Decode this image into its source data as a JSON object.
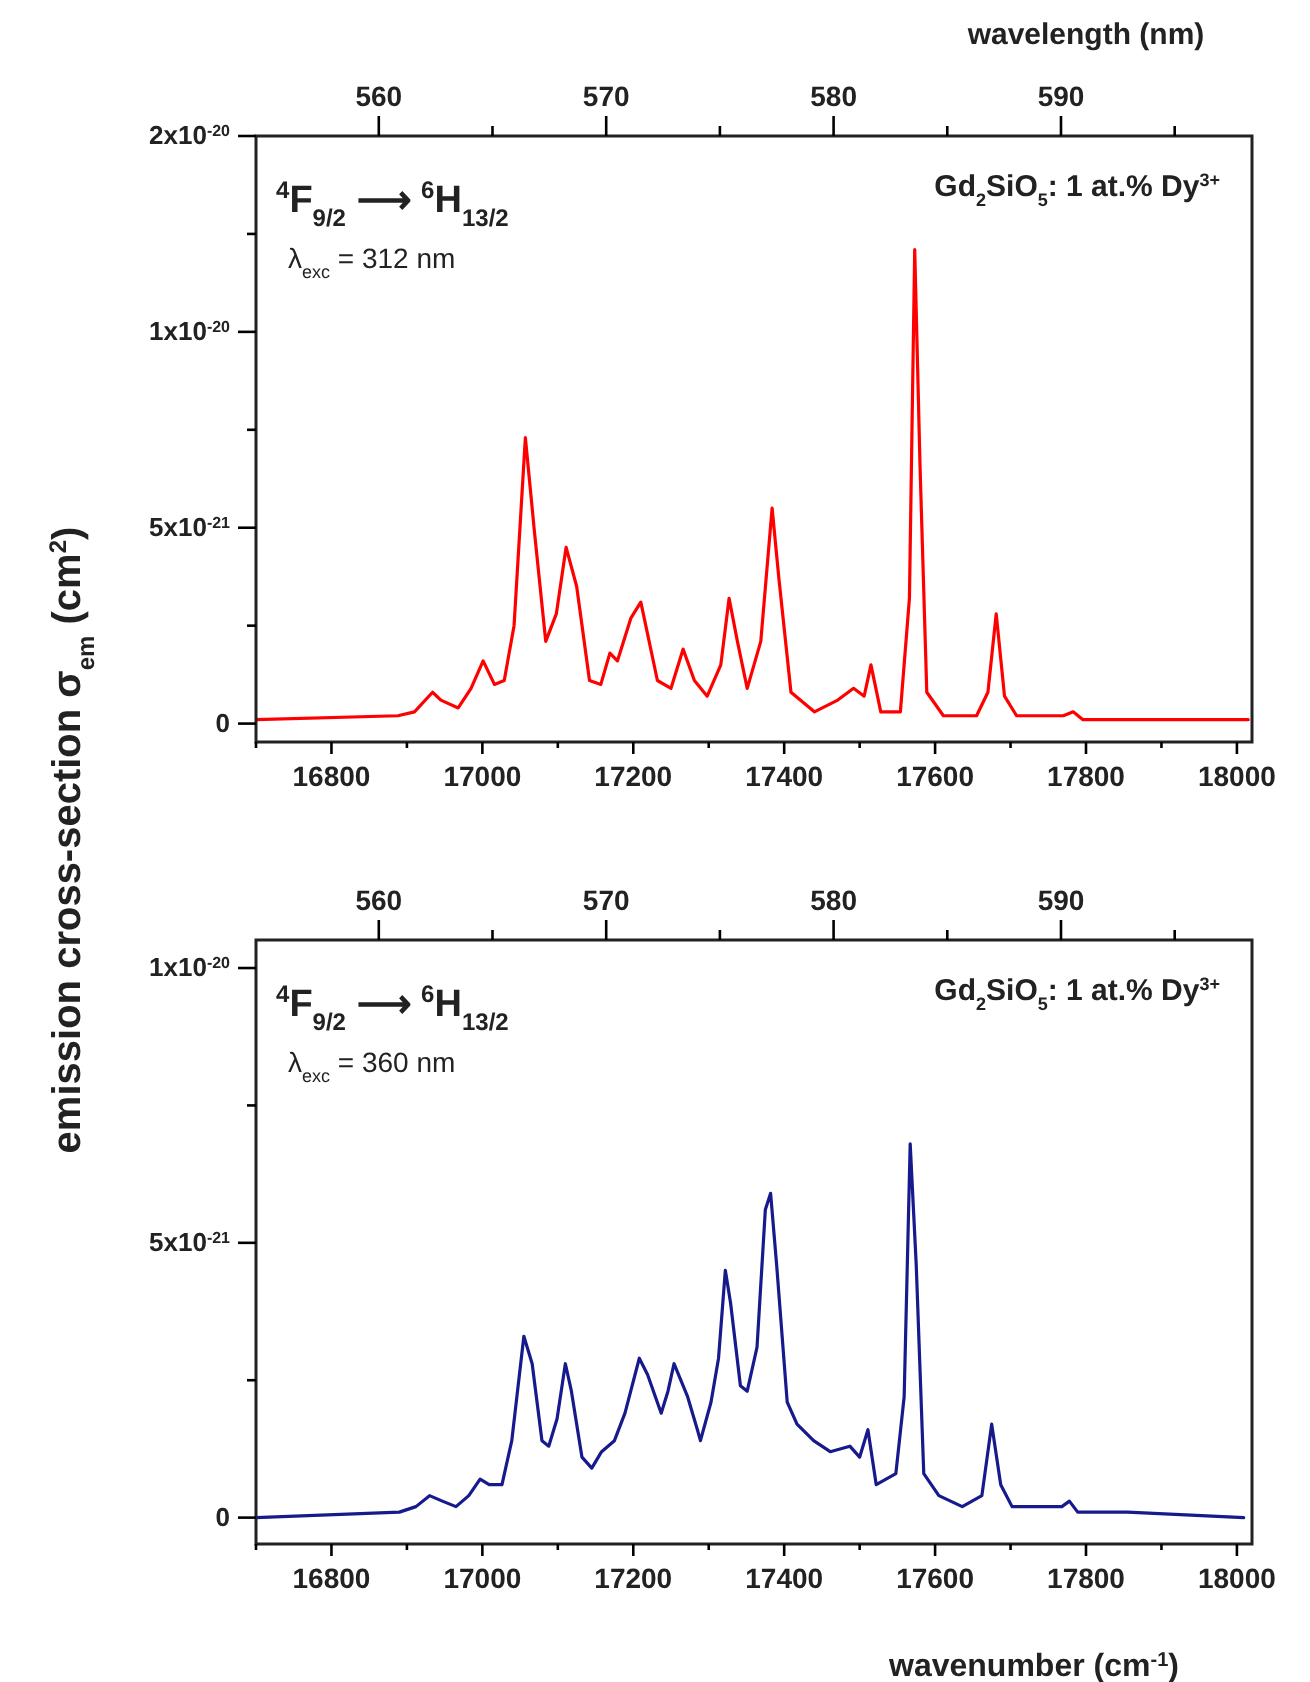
{
  "chart_data": [
    {
      "type": "line",
      "ylabel": "emission cross-section  σ$_{em}$  (cm$^{2}$)",
      "x2label": "wavelength (nm)",
      "annotations": [
        "$^{4}$F$_{9/2}$ ⟶ $^{6}$H$_{13/2}$",
        "λ$_{exc}$ = 312 nm",
        "Gd$_{2}$SiO$_{5}$: 1 at.% Dy$^{3+}$"
      ],
      "xlim": [
        16700,
        18020
      ],
      "xticks": [
        {
          "value": 16700,
          "label": null
        },
        16800,
        {
          "value": 16900,
          "label": null
        },
        17000,
        {
          "value": 17100,
          "label": null
        },
        17200,
        {
          "value": 17300,
          "label": null
        },
        17400,
        {
          "value": 17500,
          "label": null
        },
        17600,
        {
          "value": 17700,
          "label": null
        },
        17800,
        {
          "value": 17900,
          "label": null
        },
        18000
      ],
      "x2lim": [
        554.6,
        598.4
      ],
      "x2ticks": [
        560,
        {
          "value": 565,
          "label": null
        },
        570,
        {
          "value": 575,
          "label": null
        },
        580,
        {
          "value": 585,
          "label": null
        },
        590,
        {
          "value": 595,
          "label": null
        }
      ],
      "ylim": [
        -4.7e-22,
        1.5e-20
      ],
      "yticks": [
        0,
        {
          "value": 2.5e-21,
          "label": null
        },
        {
          "value": 5e-21,
          "label": "5x10$^{-21}$"
        },
        {
          "value": 7.5e-21,
          "label": null
        },
        {
          "value": 1e-20,
          "label": "1x10$^{-20}$"
        },
        {
          "value": 1.25e-20,
          "label": null
        },
        {
          "value": 1.5e-20,
          "label": "2x10$^{-20}$"
        }
      ],
      "x": [
        16700,
        16888,
        16910,
        16934,
        16945,
        16968,
        16985,
        17001,
        17016,
        17029,
        17042,
        17057,
        17069,
        17084,
        17098,
        17111,
        17125,
        17142,
        17157,
        17169,
        17179,
        17197,
        17210,
        17232,
        17250,
        17266,
        17281,
        17298,
        17316,
        17327,
        17338,
        17351,
        17369,
        17384,
        17393,
        17409,
        17440,
        17471,
        17492,
        17506,
        17515,
        17528,
        17554,
        17566,
        17573,
        17580,
        17589,
        17611,
        17655,
        17670,
        17681,
        17692,
        17708,
        17770,
        17783,
        17796,
        17910,
        18015
      ],
      "series": [
        {
          "color": "#ff0000",
          "values": [
            1e-22,
            2e-22,
            3e-22,
            8e-22,
            6e-22,
            4e-22,
            9e-22,
            1.6e-21,
            1e-21,
            1.1e-21,
            2.5e-21,
            7.3e-21,
            4.9e-21,
            2.1e-21,
            2.8e-21,
            4.5e-21,
            3.5e-21,
            1.1e-21,
            1e-21,
            1.8e-21,
            1.6e-21,
            2.7e-21,
            3.1e-21,
            1.1e-21,
            9e-22,
            1.9e-21,
            1.1e-21,
            7e-22,
            1.5e-21,
            3.2e-21,
            2.1e-21,
            9e-22,
            2.1e-21,
            5.5e-21,
            3.7e-21,
            8e-22,
            3e-22,
            6e-22,
            9e-22,
            7e-22,
            1.5e-21,
            3e-22,
            3e-22,
            3.2e-21,
            1.21e-20,
            6.6e-21,
            8e-22,
            2e-22,
            2e-22,
            8e-22,
            2.8e-21,
            7e-22,
            2e-22,
            2e-22,
            3e-22,
            1e-22,
            1e-22,
            1e-22
          ]
        }
      ]
    },
    {
      "type": "line",
      "xlabel": "wavenumber (cm$^{-1}$)",
      "annotations": [
        "$^{4}$F$_{9/2}$ ⟶ $^{6}$H$_{13/2}$",
        "λ$_{exc}$ = 360 nm",
        "Gd$_{2}$SiO$_{5}$: 1 at.% Dy$^{3+}$"
      ],
      "xlim": [
        16700,
        18020
      ],
      "xticks": [
        {
          "value": 16700,
          "label": null
        },
        16800,
        {
          "value": 16900,
          "label": null
        },
        17000,
        {
          "value": 17100,
          "label": null
        },
        17200,
        {
          "value": 17300,
          "label": null
        },
        17400,
        {
          "value": 17500,
          "label": null
        },
        17600,
        {
          "value": 17700,
          "label": null
        },
        17800,
        {
          "value": 17900,
          "label": null
        },
        18000
      ],
      "x2lim": [
        554.6,
        598.4
      ],
      "x2ticks": [
        560,
        {
          "value": 565,
          "label": null
        },
        570,
        {
          "value": 575,
          "label": null
        },
        580,
        {
          "value": 585,
          "label": null
        },
        590,
        {
          "value": 595,
          "label": null
        }
      ],
      "ylim": [
        -4.8e-22,
        1.051e-20
      ],
      "yticks": [
        0,
        {
          "value": 2.5e-21,
          "label": null
        },
        {
          "value": 5e-21,
          "label": "5x10$^{-21}$"
        },
        {
          "value": 7.5e-21,
          "label": null
        },
        {
          "value": 1e-20,
          "label": "1x10$^{-20}$"
        }
      ],
      "x": [
        16700,
        16890,
        16912,
        16930,
        16947,
        16965,
        16982,
        16997,
        17009,
        17026,
        17039,
        17055,
        17066,
        17079,
        17088,
        17099,
        17110,
        17118,
        17132,
        17145,
        17158,
        17175,
        17189,
        17208,
        17219,
        17237,
        17246,
        17254,
        17263,
        17272,
        17285,
        17289,
        17303,
        17313,
        17322,
        17329,
        17342,
        17351,
        17364,
        17375,
        17382,
        17390,
        17404,
        17417,
        17439,
        17461,
        17487,
        17500,
        17511,
        17522,
        17548,
        17559,
        17567,
        17575,
        17585,
        17605,
        17636,
        17662,
        17675,
        17687,
        17702,
        17768,
        17778,
        17789,
        17855,
        18009
      ],
      "series": [
        {
          "color": "#161a8c",
          "values": [
            0,
            1e-22,
            2e-22,
            4e-22,
            3e-22,
            2e-22,
            4e-22,
            7e-22,
            6e-22,
            6e-22,
            1.4e-21,
            3.3e-21,
            2.8e-21,
            1.4e-21,
            1.3e-21,
            1.8e-21,
            2.8e-21,
            2.3e-21,
            1.1e-21,
            9e-22,
            1.2e-21,
            1.4e-21,
            1.9e-21,
            2.9e-21,
            2.6e-21,
            1.9e-21,
            2.3e-21,
            2.8e-21,
            2.5e-21,
            2.2e-21,
            1.6e-21,
            1.4e-21,
            2.1e-21,
            2.9e-21,
            4.5e-21,
            3.9e-21,
            2.4e-21,
            2.3e-21,
            3.1e-21,
            5.6e-21,
            5.9e-21,
            4.6e-21,
            2.1e-21,
            1.7e-21,
            1.4e-21,
            1.2e-21,
            1.3e-21,
            1.1e-21,
            1.6e-21,
            6e-22,
            8e-22,
            2.2e-21,
            6.8e-21,
            4.6e-21,
            8e-22,
            4e-22,
            2e-22,
            4e-22,
            1.7e-21,
            6e-22,
            2e-22,
            2e-22,
            3e-22,
            1e-22,
            1e-22,
            0
          ]
        }
      ]
    }
  ]
}
